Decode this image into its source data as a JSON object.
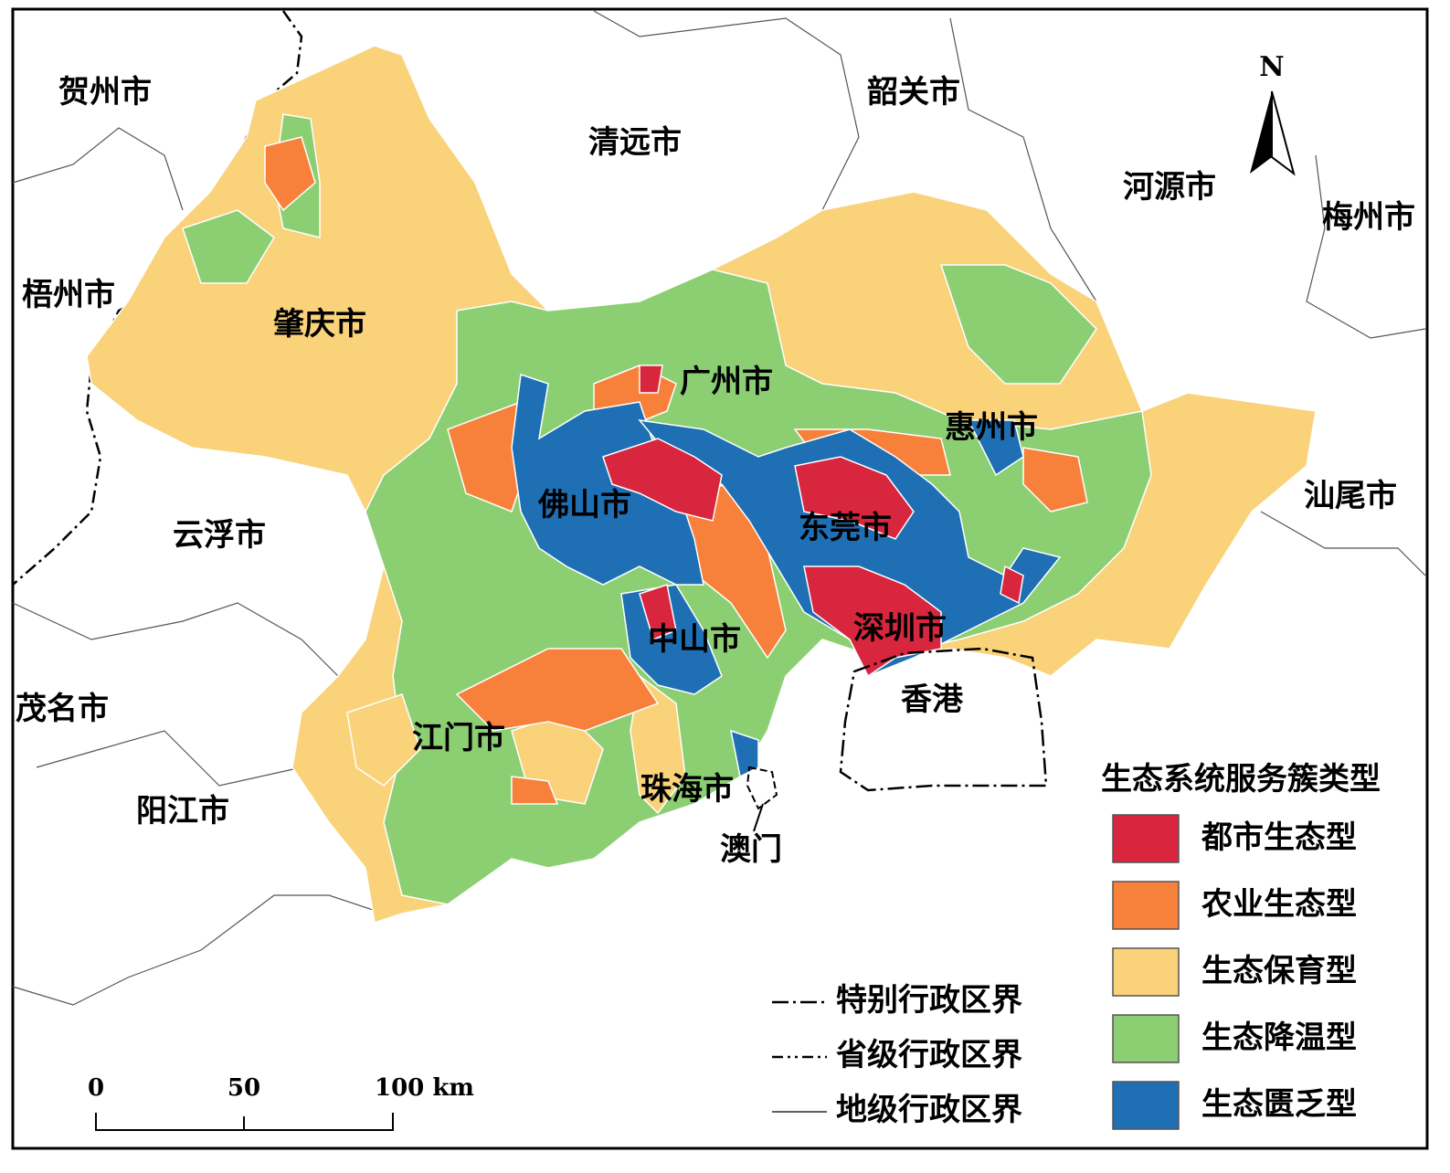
{
  "map": {
    "north": "N",
    "cities": [
      "贺州市",
      "清远市",
      "韶关市",
      "河源市",
      "梅州市",
      "梧州市",
      "肇庆市",
      "广州市",
      "惠州市",
      "汕尾市",
      "佛山市",
      "东莞市",
      "云浮市",
      "中山市",
      "深圳市",
      "香港",
      "茂名市",
      "江门市",
      "珠海市",
      "澳门",
      "阳江市"
    ],
    "legend": {
      "title": "生态系统服务簇类型",
      "items": [
        {
          "label": "都市生态型",
          "color": "#d7263d"
        },
        {
          "label": "农业生态型",
          "color": "#f7813a"
        },
        {
          "label": "生态保育型",
          "color": "#f9d27a"
        },
        {
          "label": "生态降温型",
          "color": "#8ccf73"
        },
        {
          "label": "生态匮乏型",
          "color": "#1f6fb5"
        }
      ]
    },
    "boundaries": [
      "特别行政区界",
      "省级行政区界",
      "地级行政区界"
    ],
    "scale_bar": [
      "0",
      "50",
      "100 km"
    ]
  }
}
